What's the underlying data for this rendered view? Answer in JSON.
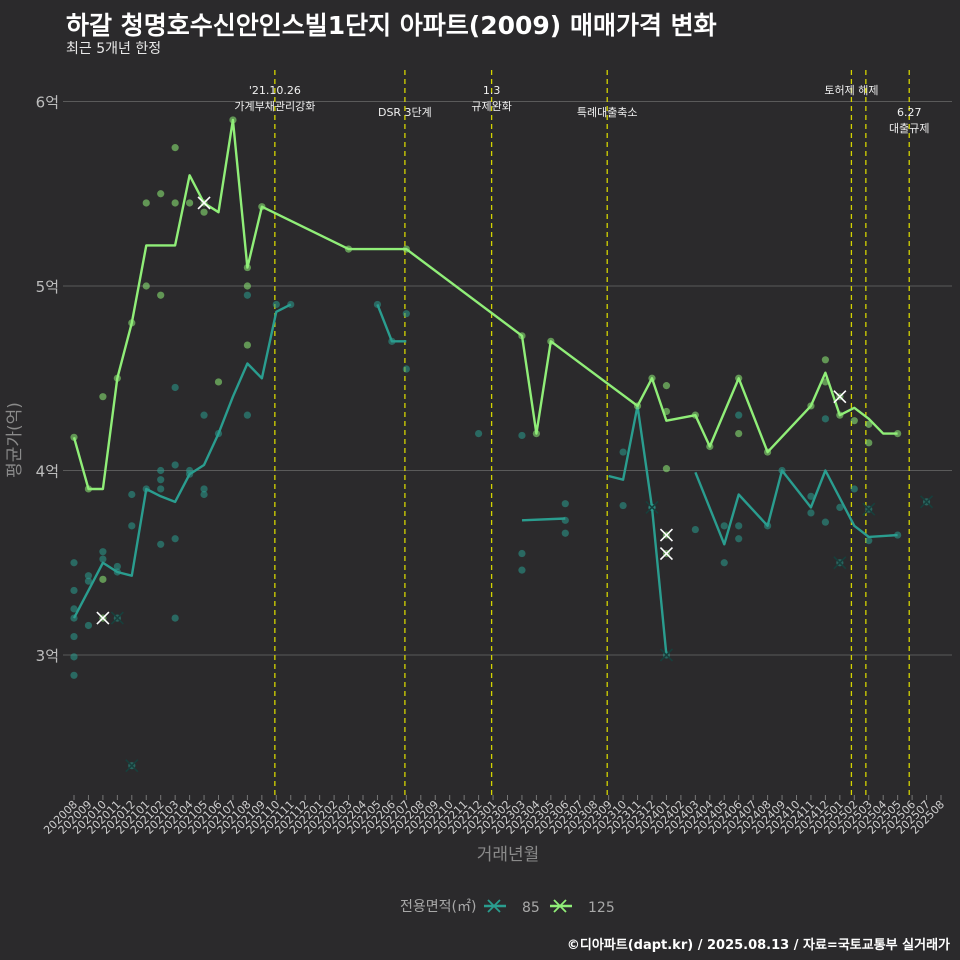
{
  "header": {
    "title": "하갈 청명호수신안인스빌1단지 아파트(2009) 매매가격 변화",
    "subtitle": "최근 5개년 한정"
  },
  "footer": {
    "credit": "©디아파트(dapt.kr) / 2025.08.13 / 자료=국토교통부 실거래가"
  },
  "colors": {
    "background": "#2b2a2c",
    "grid": "#5a5a5a",
    "s85": "#2a9d8f",
    "s125": "#90ee78",
    "event": "#d4d400",
    "axis_text": "#bdbdbd"
  },
  "chart_data": {
    "type": "line",
    "title": "하갈 청명호수신안인스빌1단지 아파트(2009) 매매가격 변화",
    "subtitle": "최근 5개년 한정",
    "xlabel": "거래년월",
    "ylabel": "평균가(억)",
    "ylim": [
      2.25,
      6.1
    ],
    "yticks": [
      3,
      4,
      5,
      6
    ],
    "ytick_labels": [
      "3억",
      "4억",
      "5억",
      "6억"
    ],
    "grid": true,
    "legend": {
      "title": "전용면적(㎡)",
      "position": "bottom",
      "entries": [
        "85",
        "125"
      ]
    },
    "x": [
      "202008",
      "202009",
      "202010",
      "202011",
      "202012",
      "202101",
      "202102",
      "202103",
      "202104",
      "202105",
      "202106",
      "202107",
      "202108",
      "202109",
      "202110",
      "202111",
      "202112",
      "202201",
      "202202",
      "202203",
      "202204",
      "202205",
      "202206",
      "202207",
      "202208",
      "202209",
      "202210",
      "202211",
      "202212",
      "202301",
      "202302",
      "202303",
      "202304",
      "202305",
      "202306",
      "202307",
      "202308",
      "202309",
      "202310",
      "202311",
      "202312",
      "202401",
      "202402",
      "202403",
      "202404",
      "202405",
      "202406",
      "202407",
      "202408",
      "202409",
      "202410",
      "202411",
      "202412",
      "202501",
      "202502",
      "202503",
      "202504",
      "202505",
      "202506",
      "202507",
      "202508"
    ],
    "series": [
      {
        "name": "85",
        "line": [
          [
            0,
            3.2
          ],
          [
            1,
            3.35
          ],
          [
            2,
            3.5
          ],
          [
            3,
            3.45
          ],
          [
            4,
            3.43
          ],
          [
            5,
            3.9
          ],
          [
            6,
            3.86
          ],
          [
            7,
            3.83
          ],
          [
            8,
            3.98
          ],
          [
            9,
            4.03
          ],
          [
            10,
            4.2
          ],
          [
            11,
            4.4
          ],
          [
            12,
            4.58
          ],
          [
            13,
            4.5
          ],
          [
            14,
            4.86
          ],
          [
            15,
            4.9
          ],
          null,
          [
            21,
            4.9
          ],
          [
            22,
            4.7
          ],
          [
            23,
            4.7
          ],
          null,
          [
            31,
            3.73
          ],
          [
            34,
            3.74
          ],
          null,
          [
            37,
            3.97
          ],
          [
            38,
            3.95
          ],
          [
            39,
            4.35
          ],
          [
            40,
            3.8
          ],
          [
            41,
            3.0
          ],
          null,
          [
            43,
            3.99
          ],
          [
            45,
            3.6
          ],
          [
            46,
            3.87
          ],
          [
            48,
            3.7
          ],
          [
            49,
            4.0
          ],
          [
            51,
            3.8
          ],
          [
            52,
            4.0
          ],
          [
            54,
            3.7
          ],
          [
            55,
            3.64
          ],
          [
            57,
            3.65
          ]
        ],
        "points": [
          [
            0,
            3.5
          ],
          [
            0,
            3.35
          ],
          [
            0,
            3.25
          ],
          [
            0,
            3.1
          ],
          [
            0,
            2.99
          ],
          [
            0,
            2.89
          ],
          [
            0,
            3.2
          ],
          [
            1,
            3.43
          ],
          [
            1,
            3.4
          ],
          [
            1,
            3.16
          ],
          [
            2,
            3.56
          ],
          [
            2,
            3.52
          ],
          [
            3,
            3.48
          ],
          [
            3,
            3.45
          ],
          [
            4,
            3.87
          ],
          [
            4,
            3.7
          ],
          [
            5,
            3.9
          ],
          [
            6,
            4.0
          ],
          [
            6,
            3.95
          ],
          [
            6,
            3.9
          ],
          [
            6,
            3.6
          ],
          [
            7,
            4.45
          ],
          [
            7,
            4.03
          ],
          [
            7,
            3.63
          ],
          [
            7,
            3.2
          ],
          [
            8,
            3.98
          ],
          [
            8,
            4.0
          ],
          [
            9,
            4.3
          ],
          [
            9,
            3.9
          ],
          [
            9,
            3.87
          ],
          [
            10,
            4.2
          ],
          [
            12,
            4.95
          ],
          [
            12,
            4.3
          ],
          [
            14,
            4.9
          ],
          [
            15,
            4.9
          ],
          [
            21,
            4.9
          ],
          [
            22,
            4.7
          ],
          [
            23,
            4.85
          ],
          [
            23,
            4.55
          ],
          [
            28,
            4.2
          ],
          [
            31,
            4.19
          ],
          [
            31,
            3.55
          ],
          [
            31,
            3.46
          ],
          [
            34,
            3.82
          ],
          [
            34,
            3.73
          ],
          [
            34,
            3.66
          ],
          [
            38,
            4.1
          ],
          [
            38,
            3.81
          ],
          [
            40,
            3.8
          ],
          [
            43,
            3.68
          ],
          [
            45,
            3.7
          ],
          [
            45,
            3.5
          ],
          [
            46,
            4.3
          ],
          [
            46,
            3.7
          ],
          [
            46,
            3.63
          ],
          [
            48,
            3.7
          ],
          [
            49,
            4.0
          ],
          [
            51,
            3.77
          ],
          [
            51,
            3.86
          ],
          [
            52,
            4.28
          ],
          [
            52,
            3.72
          ],
          [
            53,
            3.8
          ],
          [
            54,
            3.9
          ],
          [
            55,
            3.62
          ],
          [
            57,
            3.65
          ]
        ],
        "cancelled": [
          [
            3,
            3.2
          ],
          [
            4,
            2.4
          ],
          [
            40,
            3.8
          ],
          [
            41,
            3.0
          ],
          [
            53,
            3.5
          ],
          [
            55,
            3.79
          ],
          [
            59,
            3.83
          ]
        ]
      },
      {
        "name": "125",
        "line": [
          [
            0,
            4.18
          ],
          [
            1,
            3.9
          ],
          [
            2,
            3.9
          ],
          [
            3,
            4.5
          ],
          [
            4,
            4.8
          ],
          [
            5,
            5.22
          ],
          [
            6,
            5.22
          ],
          [
            7,
            5.22
          ],
          [
            8,
            5.6
          ],
          [
            9,
            5.45
          ],
          [
            10,
            5.4
          ],
          [
            11,
            5.9
          ],
          [
            12,
            5.1
          ],
          [
            13,
            5.43
          ],
          [
            19,
            5.2
          ],
          [
            23,
            5.2
          ],
          [
            31,
            4.73
          ],
          [
            32,
            4.2
          ],
          [
            33,
            4.7
          ],
          [
            39,
            4.35
          ],
          [
            40,
            4.5
          ],
          [
            41,
            4.27
          ],
          [
            43,
            4.3
          ],
          [
            44,
            4.13
          ],
          [
            46,
            4.5
          ],
          [
            48,
            4.1
          ],
          [
            51,
            4.35
          ],
          [
            52,
            4.53
          ],
          [
            53,
            4.3
          ],
          [
            54,
            4.34
          ],
          [
            55,
            4.28
          ],
          [
            56,
            4.2
          ],
          [
            57,
            4.2
          ]
        ],
        "points": [
          [
            0,
            4.18
          ],
          [
            1,
            3.9
          ],
          [
            2,
            4.4
          ],
          [
            2,
            3.41
          ],
          [
            3,
            4.5
          ],
          [
            4,
            4.8
          ],
          [
            5,
            5.45
          ],
          [
            5,
            5.0
          ],
          [
            6,
            5.5
          ],
          [
            6,
            4.95
          ],
          [
            7,
            5.75
          ],
          [
            7,
            5.45
          ],
          [
            8,
            5.45
          ],
          [
            9,
            5.4
          ],
          [
            10,
            4.48
          ],
          [
            11,
            5.9
          ],
          [
            12,
            5.1
          ],
          [
            12,
            5.0
          ],
          [
            12,
            4.68
          ],
          [
            13,
            5.43
          ],
          [
            19,
            5.2
          ],
          [
            23,
            5.2
          ],
          [
            31,
            4.73
          ],
          [
            32,
            4.2
          ],
          [
            33,
            4.7
          ],
          [
            39,
            4.35
          ],
          [
            40,
            4.5
          ],
          [
            41,
            4.46
          ],
          [
            41,
            4.32
          ],
          [
            41,
            4.01
          ],
          [
            43,
            4.3
          ],
          [
            44,
            4.13
          ],
          [
            46,
            4.5
          ],
          [
            46,
            4.2
          ],
          [
            48,
            4.1
          ],
          [
            51,
            4.35
          ],
          [
            52,
            4.6
          ],
          [
            52,
            4.48
          ],
          [
            53,
            4.3
          ],
          [
            54,
            4.27
          ],
          [
            55,
            4.25
          ],
          [
            55,
            4.15
          ],
          [
            57,
            4.2
          ]
        ],
        "cancelled": [
          [
            2,
            3.2
          ],
          [
            9,
            5.45
          ],
          [
            41,
            3.65
          ],
          [
            41,
            3.55
          ],
          [
            53,
            4.4
          ]
        ]
      }
    ],
    "events": [
      {
        "x": 13.9,
        "lines": [
          "'21.10.26",
          "가계부채관리강화"
        ],
        "row": 1
      },
      {
        "x": 22.9,
        "lines": [
          "DSR 3단계"
        ],
        "row": 2
      },
      {
        "x": 28.9,
        "lines": [
          "1.3",
          "규제완화"
        ],
        "row": 1
      },
      {
        "x": 36.9,
        "lines": [
          "특례대출축소"
        ],
        "row": 2
      },
      {
        "x": 53.8,
        "lines": [
          "토허제 해제"
        ],
        "row": 1
      },
      {
        "x": 54.8,
        "lines": [],
        "row": 1
      },
      {
        "x": 57.8,
        "lines": [
          "6.27",
          "대출규제"
        ],
        "row": 2
      }
    ]
  }
}
